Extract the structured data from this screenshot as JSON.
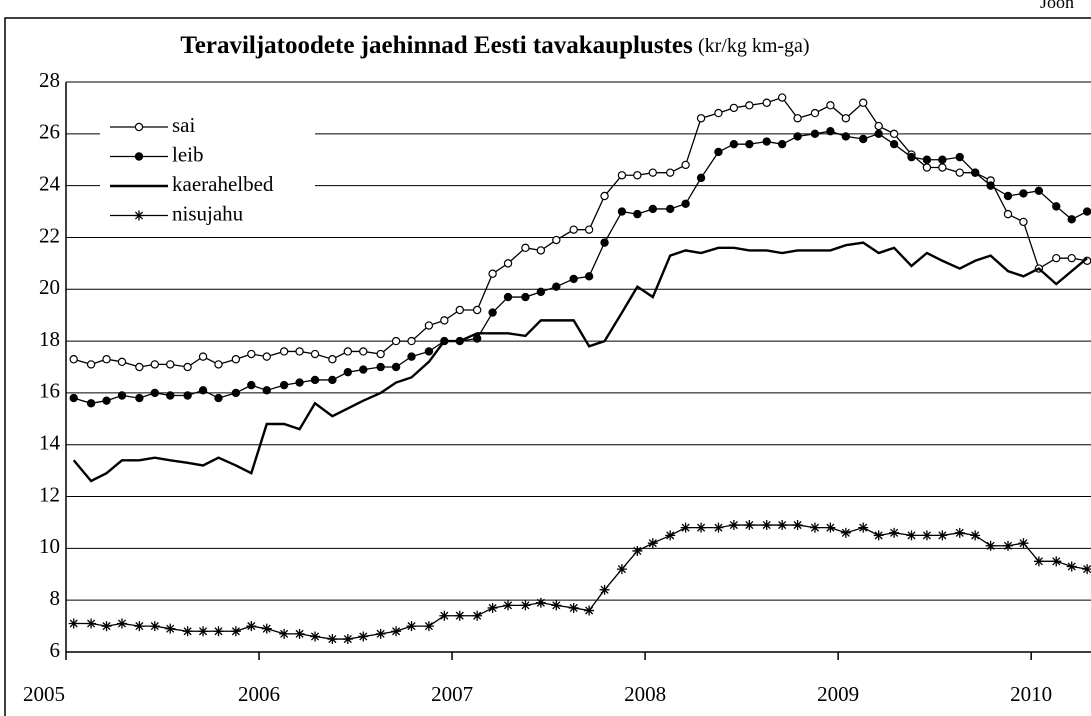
{
  "chart_data": {
    "type": "line",
    "title": "Teraviljatoodete jaehinnad Eesti tavakauplustes",
    "subtitle": "(kr/kg km-ga)",
    "annotation": "Joon",
    "x": [
      2005.04,
      2005.13,
      2005.21,
      2005.29,
      2005.38,
      2005.46,
      2005.54,
      2005.63,
      2005.71,
      2005.79,
      2005.88,
      2005.96,
      2006.04,
      2006.13,
      2006.21,
      2006.29,
      2006.38,
      2006.46,
      2006.54,
      2006.63,
      2006.71,
      2006.79,
      2006.88,
      2006.96,
      2007.04,
      2007.13,
      2007.21,
      2007.29,
      2007.38,
      2007.46,
      2007.54,
      2007.63,
      2007.71,
      2007.79,
      2007.88,
      2007.96,
      2008.04,
      2008.13,
      2008.21,
      2008.29,
      2008.38,
      2008.46,
      2008.54,
      2008.63,
      2008.71,
      2008.79,
      2008.88,
      2008.96,
      2009.04,
      2009.13,
      2009.21,
      2009.29,
      2009.38,
      2009.46,
      2009.54,
      2009.63,
      2009.71,
      2009.79,
      2009.88,
      2009.96,
      2010.04,
      2010.13,
      2010.21,
      2010.29
    ],
    "series": [
      {
        "name": "sai",
        "color": "#000000",
        "marker": "circle-open",
        "values": [
          17.3,
          17.1,
          17.3,
          17.2,
          17.0,
          17.1,
          17.1,
          17.0,
          17.4,
          17.1,
          17.3,
          17.5,
          17.4,
          17.6,
          17.6,
          17.5,
          17.3,
          17.6,
          17.6,
          17.5,
          18.0,
          18.0,
          18.6,
          18.8,
          19.2,
          19.2,
          20.6,
          21.0,
          21.6,
          21.5,
          21.9,
          22.3,
          22.3,
          23.6,
          24.4,
          24.4,
          24.5,
          24.5,
          24.8,
          26.6,
          26.8,
          27.0,
          27.1,
          27.2,
          27.4,
          26.6,
          26.8,
          27.1,
          26.6,
          27.2,
          26.3,
          26.0,
          25.2,
          24.7,
          24.7,
          24.5,
          24.5,
          24.2,
          22.9,
          22.6,
          20.8,
          21.2,
          21.2,
          21.1
        ]
      },
      {
        "name": "leib",
        "color": "#000000",
        "marker": "circle",
        "values": [
          15.8,
          15.6,
          15.7,
          15.9,
          15.8,
          16.0,
          15.9,
          15.9,
          16.1,
          15.8,
          16.0,
          16.3,
          16.1,
          16.3,
          16.4,
          16.5,
          16.5,
          16.8,
          16.9,
          17.0,
          17.0,
          17.4,
          17.6,
          18.0,
          18.0,
          18.1,
          19.1,
          19.7,
          19.7,
          19.9,
          20.1,
          20.4,
          20.5,
          21.8,
          23.0,
          22.9,
          23.1,
          23.1,
          23.3,
          24.3,
          25.3,
          25.6,
          25.6,
          25.7,
          25.6,
          25.9,
          26.0,
          26.1,
          25.9,
          25.8,
          26.0,
          25.6,
          25.1,
          25.0,
          25.0,
          25.1,
          24.5,
          24.0,
          23.6,
          23.7,
          23.8,
          23.2,
          22.7,
          23.0
        ]
      },
      {
        "name": "kaerahelbed",
        "color": "#000000",
        "marker": "none",
        "values": [
          13.4,
          12.6,
          12.9,
          13.4,
          13.4,
          13.5,
          13.4,
          13.3,
          13.2,
          13.5,
          13.2,
          12.9,
          14.8,
          14.8,
          14.6,
          15.6,
          15.1,
          15.4,
          15.7,
          16.0,
          16.4,
          16.6,
          17.2,
          18.0,
          18.0,
          18.3,
          18.3,
          18.3,
          18.2,
          18.8,
          18.8,
          18.8,
          17.8,
          18.0,
          19.1,
          20.1,
          19.7,
          21.3,
          21.5,
          21.4,
          21.6,
          21.6,
          21.5,
          21.5,
          21.4,
          21.5,
          21.5,
          21.5,
          21.7,
          21.8,
          21.4,
          21.6,
          20.9,
          21.4,
          21.1,
          20.8,
          21.1,
          21.3,
          20.7,
          20.5,
          20.8,
          20.2,
          20.7,
          21.2
        ]
      },
      {
        "name": "nisujahu",
        "color": "#000000",
        "marker": "star",
        "values": [
          7.1,
          7.1,
          7.0,
          7.1,
          7.0,
          7.0,
          6.9,
          6.8,
          6.8,
          6.8,
          6.8,
          7.0,
          6.9,
          6.7,
          6.7,
          6.6,
          6.5,
          6.5,
          6.6,
          6.7,
          6.8,
          7.0,
          7.0,
          7.4,
          7.4,
          7.4,
          7.7,
          7.8,
          7.8,
          7.9,
          7.8,
          7.7,
          7.6,
          8.4,
          9.2,
          9.9,
          10.2,
          10.5,
          10.8,
          10.8,
          10.8,
          10.9,
          10.9,
          10.9,
          10.9,
          10.9,
          10.8,
          10.8,
          10.6,
          10.8,
          10.5,
          10.6,
          10.5,
          10.5,
          10.5,
          10.6,
          10.5,
          10.1,
          10.1,
          10.2,
          9.5,
          9.5,
          9.3,
          9.2
        ]
      }
    ],
    "xlim": [
      2005,
      2010.31
    ],
    "xticks": [
      2005,
      2006,
      2007,
      2008,
      2009,
      2010
    ],
    "ylim": [
      6,
      28
    ],
    "yticks": [
      6,
      8,
      10,
      12,
      14,
      16,
      18,
      20,
      22,
      24,
      26,
      28
    ],
    "grid": true,
    "legend": "upper left"
  }
}
